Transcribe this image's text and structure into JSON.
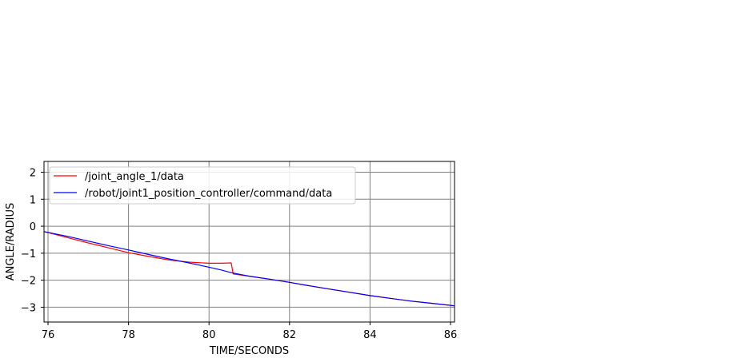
{
  "chart_data": {
    "type": "line",
    "title": "",
    "xlabel": "TIME/SECONDS",
    "ylabel": "ANGLE/RADIUS",
    "xlim": [
      75.9,
      86.1
    ],
    "ylim": [
      -3.55,
      2.4
    ],
    "xticks": [
      76,
      78,
      80,
      82,
      84,
      86
    ],
    "yticks": [
      2,
      1,
      0,
      -1,
      -2,
      -3
    ],
    "xtick_labels": [
      "76",
      "78",
      "80",
      "82",
      "84",
      "86"
    ],
    "ytick_labels": [
      "2",
      "1",
      "0",
      "−1",
      "−2",
      "−3"
    ],
    "grid": true,
    "legend_position": "upper-left",
    "series": [
      {
        "name": "/joint_angle_1/data",
        "color": "#ff0000",
        "x": [
          75.9,
          76.5,
          77.0,
          77.5,
          78.0,
          78.5,
          79.0,
          79.5,
          80.0,
          80.3,
          80.55,
          80.6,
          81.0,
          81.5,
          82.0,
          82.5,
          83.0,
          83.5,
          84.0,
          84.5,
          85.0,
          85.5,
          86.1
        ],
        "y": [
          -0.2,
          -0.43,
          -0.62,
          -0.8,
          -0.98,
          -1.12,
          -1.25,
          -1.33,
          -1.37,
          -1.37,
          -1.36,
          -1.77,
          -1.85,
          -1.96,
          -2.08,
          -2.21,
          -2.33,
          -2.45,
          -2.57,
          -2.67,
          -2.77,
          -2.85,
          -2.95
        ]
      },
      {
        "name": "/robot/joint1_position_controller/command/data",
        "color": "#0000ff",
        "x": [
          75.9,
          76.5,
          77.0,
          77.5,
          78.0,
          78.5,
          79.0,
          79.5,
          80.0,
          80.3,
          80.55,
          81.0,
          81.5,
          82.0,
          82.5,
          83.0,
          83.5,
          84.0,
          84.5,
          85.0,
          85.5,
          86.1
        ],
        "y": [
          -0.2,
          -0.38,
          -0.55,
          -0.72,
          -0.88,
          -1.05,
          -1.21,
          -1.36,
          -1.52,
          -1.62,
          -1.72,
          -1.85,
          -1.96,
          -2.08,
          -2.21,
          -2.33,
          -2.45,
          -2.57,
          -2.67,
          -2.77,
          -2.85,
          -2.95
        ]
      }
    ]
  }
}
